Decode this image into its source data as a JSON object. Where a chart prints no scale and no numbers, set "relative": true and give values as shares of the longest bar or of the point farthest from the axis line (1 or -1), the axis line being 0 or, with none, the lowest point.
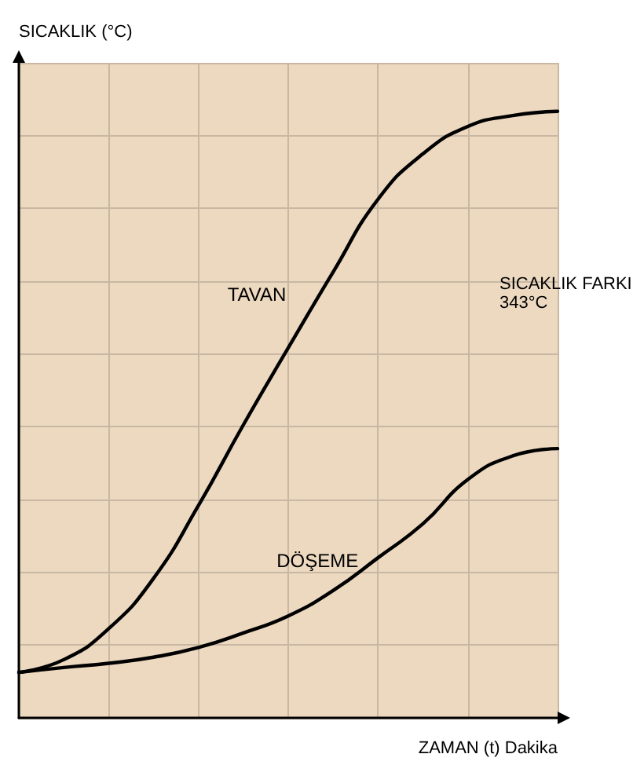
{
  "chart_data": {
    "type": "line",
    "relative": true,
    "xlabel": "ZAMAN (t) Dakika",
    "ylabel": "SICAKLIK (°C)",
    "categories": [
      null,
      null,
      null,
      null,
      null,
      null,
      null,
      null,
      null,
      null,
      null,
      null,
      null
    ],
    "series": [
      {
        "name": "TAVAN",
        "color": "#000000",
        "values": [
          0.075,
          0.096,
          0.147,
          0.23,
          0.35,
          0.483,
          0.61,
          0.735,
          0.855,
          0.93,
          0.975,
          0.993,
          1
        ]
      },
      {
        "name": "DÖŞEME",
        "color": "#000000",
        "values": [
          0.075,
          0.083,
          0.09,
          0.1,
          0.116,
          0.14,
          0.168,
          0.21,
          0.264,
          0.32,
          0.393,
          0.432,
          0.444
        ]
      }
    ],
    "annotations": [
      "SICAKLIK FARKI\n343°C"
    ],
    "grid": true,
    "legend": false,
    "marker": "none",
    "line_style": "solid"
  }
}
